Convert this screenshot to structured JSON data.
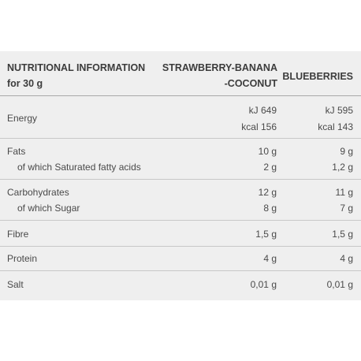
{
  "header": {
    "col_label_line1": "NUTRITIONAL INFORMATION",
    "col_label_line2": "for 30 g",
    "col1_line1": "STRAWBERRY-BANANA",
    "col1_line2": "-COCONUT",
    "col2": "BLUEBERRIES"
  },
  "rows": [
    {
      "label": "Energy",
      "col1_a": "kJ 649",
      "col1_b": "kcal 156",
      "col2_a": "kJ 595",
      "col2_b": "kcal 143"
    },
    {
      "label": "Fats",
      "col1": "10 g",
      "col2": "9 g",
      "sub_label": "of which Saturated fatty acids",
      "sub_col1": "2 g",
      "sub_col2": "1,2 g"
    },
    {
      "label": "Carbohydrates",
      "col1": "12 g",
      "col2": "11 g",
      "sub_label": "of which Sugar",
      "sub_col1": "8 g",
      "sub_col2": "7 g"
    },
    {
      "label": "Fibre",
      "col1": "1,5 g",
      "col2": "1,5 g"
    },
    {
      "label": "Protein",
      "col1": "4 g",
      "col2": "4 g"
    },
    {
      "label": "Salt",
      "col1": "0,01 g",
      "col2": "0,01 g"
    }
  ]
}
